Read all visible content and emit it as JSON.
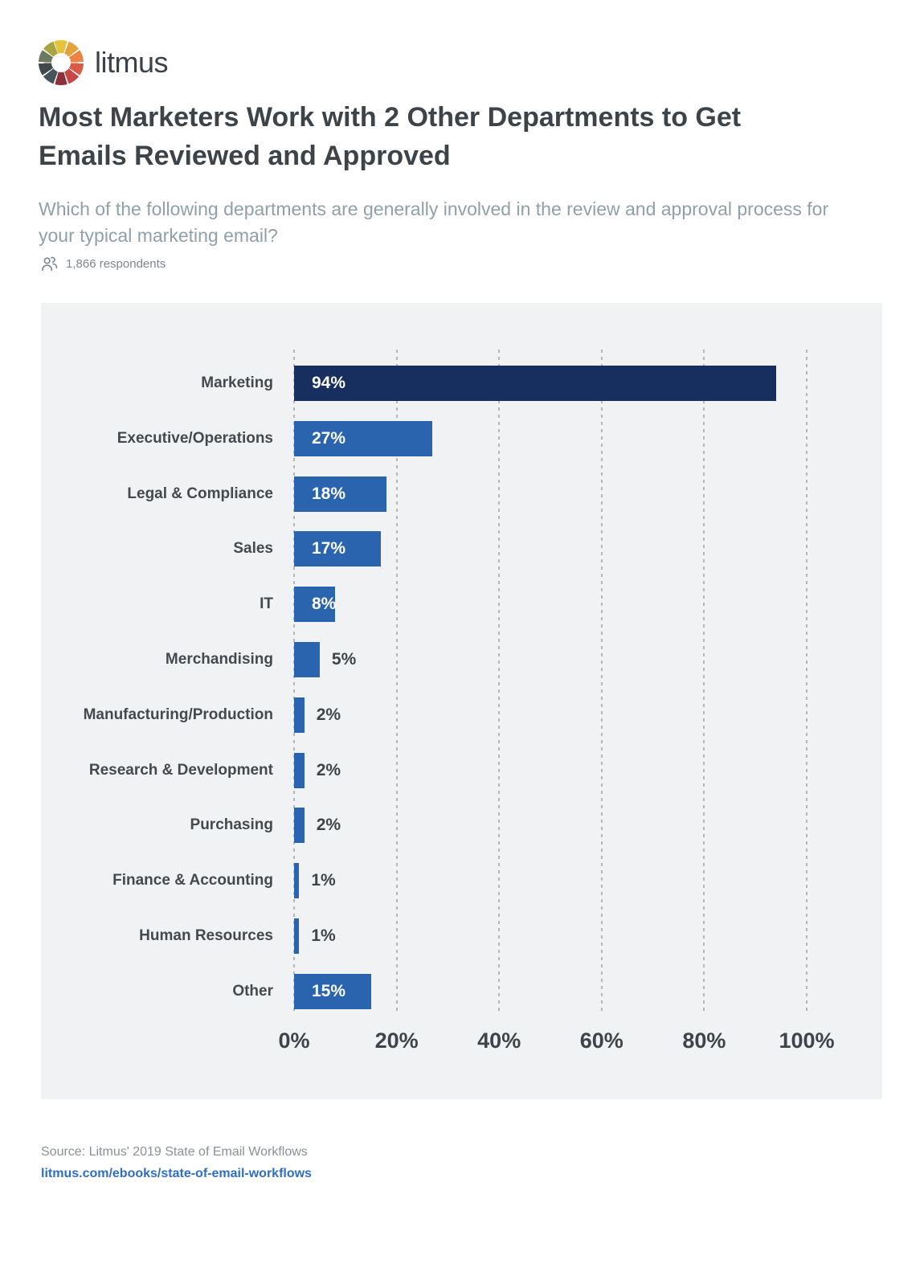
{
  "logo": {
    "brand": "litmus"
  },
  "header": {
    "title": "Most Marketers Work with 2 Other Departments to Get Emails Reviewed and Approved",
    "subtitle": "Which of the following departments are generally involved in the review and approval process for your typical marketing email?",
    "respondents": "1,866 respondents"
  },
  "chart_data": {
    "type": "bar",
    "orientation": "horizontal",
    "title": "Most Marketers Work with 2 Other Departments to Get Emails Reviewed and Approved",
    "subtitle": "Which of the following departments are generally involved in the review and approval process for your typical marketing email?",
    "categories": [
      "Marketing",
      "Executive/Operations",
      "Legal & Compliance",
      "Sales",
      "IT",
      "Merchandising",
      "Manufacturing/Production",
      "Research & Development",
      "Purchasing",
      "Finance & Accounting",
      "Human Resources",
      "Other"
    ],
    "values": [
      94,
      27,
      18,
      17,
      8,
      5,
      2,
      2,
      2,
      1,
      1,
      15
    ],
    "value_labels": [
      "94%",
      "27%",
      "18%",
      "17%",
      "8%",
      "5%",
      "2%",
      "2%",
      "2%",
      "1%",
      "1%",
      "15%"
    ],
    "x_ticks": [
      "0%",
      "20%",
      "40%",
      "60%",
      "80%",
      "100%"
    ],
    "x_tick_values": [
      0,
      20,
      40,
      60,
      80,
      100
    ],
    "xlim": [
      0,
      100
    ],
    "grid": "dashed-vertical",
    "legend": "none",
    "bar_color": "#2b64ae",
    "highlight_color": "#172f5f",
    "highlight_index": 0,
    "panel_background": "#f1f2f4"
  },
  "footer": {
    "source": "Source: Litmus' 2019 State of Email Workflows",
    "link": "litmus.com/ebooks/state-of-email-workflows"
  }
}
